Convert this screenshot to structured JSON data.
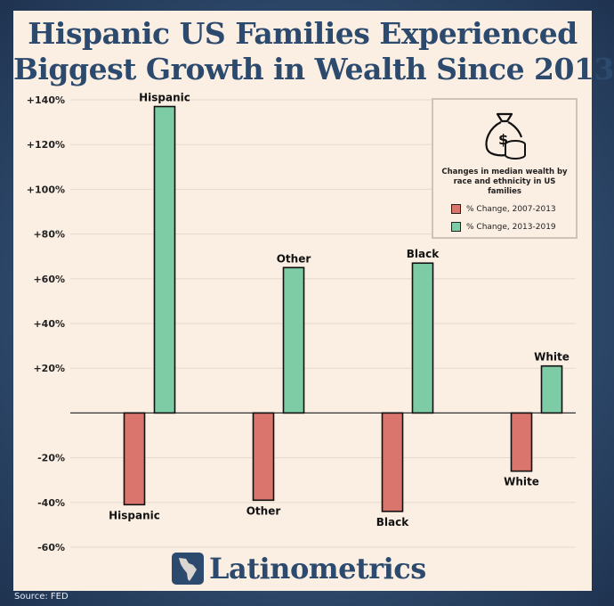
{
  "title": {
    "line1": "Hispanic US Families Experienced",
    "line2": "Biggest Growth in Wealth Since 2013"
  },
  "chart_data": {
    "type": "bar",
    "title": "Hispanic US Families Experienced Biggest Growth in Wealth Since 2013",
    "categories": [
      "Hispanic",
      "Other",
      "Black",
      "White"
    ],
    "series": [
      {
        "name": "% Change, 2007-2013",
        "color": "#d9756d",
        "values": [
          -41,
          -39,
          -44,
          -26
        ]
      },
      {
        "name": "% Change, 2013-2019",
        "color": "#7dcca6",
        "values": [
          137,
          65,
          67,
          21
        ]
      }
    ],
    "yticks": [
      "+140%",
      "+120%",
      "+100%",
      "+80%",
      "+60%",
      "+40%",
      "+20%",
      "-20%",
      "-40%",
      "-60%"
    ],
    "ytick_values": [
      140,
      120,
      100,
      80,
      60,
      40,
      20,
      -20,
      -40,
      -60
    ],
    "ylim": [
      -60,
      140
    ],
    "xlabel": "",
    "ylabel": "",
    "grid": true
  },
  "legend": {
    "icon": "money-bag-icon",
    "title": "Changes in median wealth by race and ethnicity in US families",
    "entries": [
      "% Change, 2007-2013",
      "% Change, 2013-2019"
    ]
  },
  "brand": {
    "name": "Latinometrics",
    "icon": "latin-america-map-icon"
  },
  "source": "Source: FED"
}
